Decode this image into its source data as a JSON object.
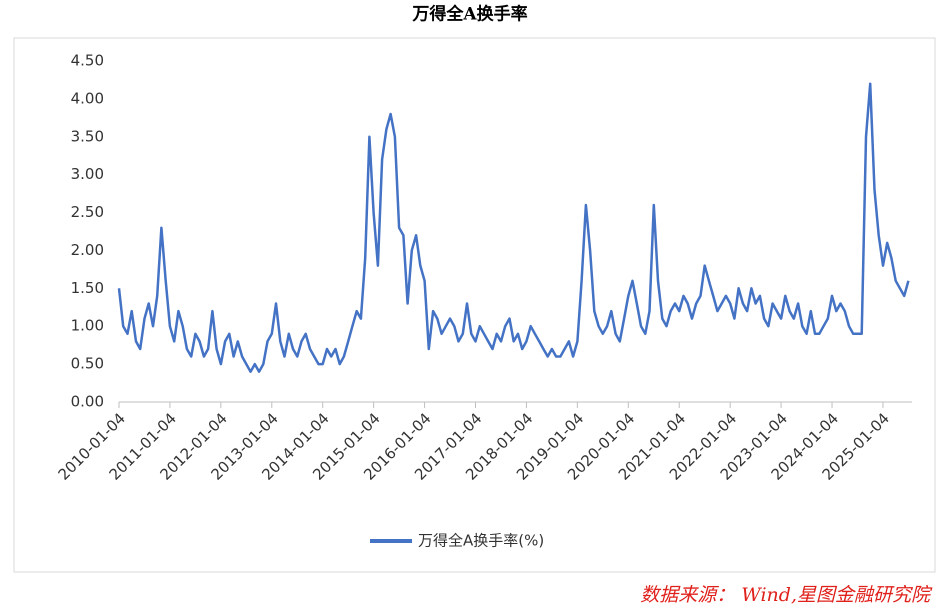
{
  "chart_data": {
    "type": "line",
    "title": "万得全A换手率",
    "categories": [
      "2010-01-04",
      null,
      null,
      null,
      null,
      null,
      null,
      null,
      null,
      null,
      null,
      null,
      "2011-01-04",
      null,
      null,
      null,
      null,
      null,
      null,
      null,
      null,
      null,
      null,
      null,
      "2012-01-04",
      null,
      null,
      null,
      null,
      null,
      null,
      null,
      null,
      null,
      null,
      null,
      "2013-01-04",
      null,
      null,
      null,
      null,
      null,
      null,
      null,
      null,
      null,
      null,
      null,
      "2014-01-04",
      null,
      null,
      null,
      null,
      null,
      null,
      null,
      null,
      null,
      null,
      null,
      "2015-01-04",
      null,
      null,
      null,
      null,
      null,
      null,
      null,
      null,
      null,
      null,
      null,
      "2016-01-04",
      null,
      null,
      null,
      null,
      null,
      null,
      null,
      null,
      null,
      null,
      null,
      "2017-01-04",
      null,
      null,
      null,
      null,
      null,
      null,
      null,
      null,
      null,
      null,
      null,
      "2018-01-04",
      null,
      null,
      null,
      null,
      null,
      null,
      null,
      null,
      null,
      null,
      null,
      "2019-01-04",
      null,
      null,
      null,
      null,
      null,
      null,
      null,
      null,
      null,
      null,
      null,
      "2020-01-04",
      null,
      null,
      null,
      null,
      null,
      null,
      null,
      null,
      null,
      null,
      null,
      "2021-01-04",
      null,
      null,
      null,
      null,
      null,
      null,
      null,
      null,
      null,
      null,
      null,
      "2022-01-04",
      null,
      null,
      null,
      null,
      null,
      null,
      null,
      null,
      null,
      null,
      null,
      "2023-01-04",
      null,
      null,
      null,
      null,
      null,
      null,
      null,
      null,
      null,
      null,
      null,
      "2024-01-04",
      null,
      null,
      null,
      null,
      null,
      null,
      null,
      null,
      null,
      null,
      null,
      "2025-01-04",
      null,
      null,
      null,
      null,
      null,
      null
    ],
    "series": [
      {
        "name": "万得全A换手率(%)",
        "color": "#4472c4",
        "values": [
          1.5,
          1.0,
          0.9,
          1.2,
          0.8,
          0.7,
          1.1,
          1.3,
          1.0,
          1.4,
          2.3,
          1.6,
          1.0,
          0.8,
          1.2,
          1.0,
          0.7,
          0.6,
          0.9,
          0.8,
          0.6,
          0.7,
          1.2,
          0.7,
          0.5,
          0.8,
          0.9,
          0.6,
          0.8,
          0.6,
          0.5,
          0.4,
          0.5,
          0.4,
          0.5,
          0.8,
          0.9,
          1.3,
          0.8,
          0.6,
          0.9,
          0.7,
          0.6,
          0.8,
          0.9,
          0.7,
          0.6,
          0.5,
          0.5,
          0.7,
          0.6,
          0.7,
          0.5,
          0.6,
          0.8,
          1.0,
          1.2,
          1.1,
          1.9,
          3.5,
          2.5,
          1.8,
          3.2,
          3.6,
          3.8,
          3.5,
          2.3,
          2.2,
          1.3,
          2.0,
          2.2,
          1.8,
          1.6,
          0.7,
          1.2,
          1.1,
          0.9,
          1.0,
          1.1,
          1.0,
          0.8,
          0.9,
          1.3,
          0.9,
          0.8,
          1.0,
          0.9,
          0.8,
          0.7,
          0.9,
          0.8,
          1.0,
          1.1,
          0.8,
          0.9,
          0.7,
          0.8,
          1.0,
          0.9,
          0.8,
          0.7,
          0.6,
          0.7,
          0.6,
          0.6,
          0.7,
          0.8,
          0.6,
          0.8,
          1.6,
          2.6,
          2.0,
          1.2,
          1.0,
          0.9,
          1.0,
          1.2,
          0.9,
          0.8,
          1.1,
          1.4,
          1.6,
          1.3,
          1.0,
          0.9,
          1.2,
          2.6,
          1.6,
          1.1,
          1.0,
          1.2,
          1.3,
          1.2,
          1.4,
          1.3,
          1.1,
          1.3,
          1.4,
          1.8,
          1.6,
          1.4,
          1.2,
          1.3,
          1.4,
          1.3,
          1.1,
          1.5,
          1.3,
          1.2,
          1.5,
          1.3,
          1.4,
          1.1,
          1.0,
          1.3,
          1.2,
          1.1,
          1.4,
          1.2,
          1.1,
          1.3,
          1.0,
          0.9,
          1.2,
          0.9,
          0.9,
          1.0,
          1.1,
          1.4,
          1.2,
          1.3,
          1.2,
          1.0,
          0.9,
          0.9,
          0.9,
          3.5,
          4.2,
          2.8,
          2.2,
          1.8,
          2.1,
          1.9,
          1.6,
          1.5,
          1.4,
          1.6
        ]
      }
    ],
    "ylim": [
      0,
      4.5
    ],
    "yticks": [
      {
        "value": 0,
        "label": "0.00"
      },
      {
        "value": 0.5,
        "label": "0.50"
      },
      {
        "value": 1,
        "label": "1.00"
      },
      {
        "value": 1.5,
        "label": "1.50"
      },
      {
        "value": 2,
        "label": "2.00"
      },
      {
        "value": 2.5,
        "label": "2.50"
      },
      {
        "value": 3,
        "label": "3.00"
      },
      {
        "value": 3.5,
        "label": "3.50"
      },
      {
        "value": 4,
        "label": "4.00"
      },
      {
        "value": 4.5,
        "label": "4.50"
      }
    ],
    "grid": false
  },
  "source": "数据来源： Wind,星图金融研究院"
}
